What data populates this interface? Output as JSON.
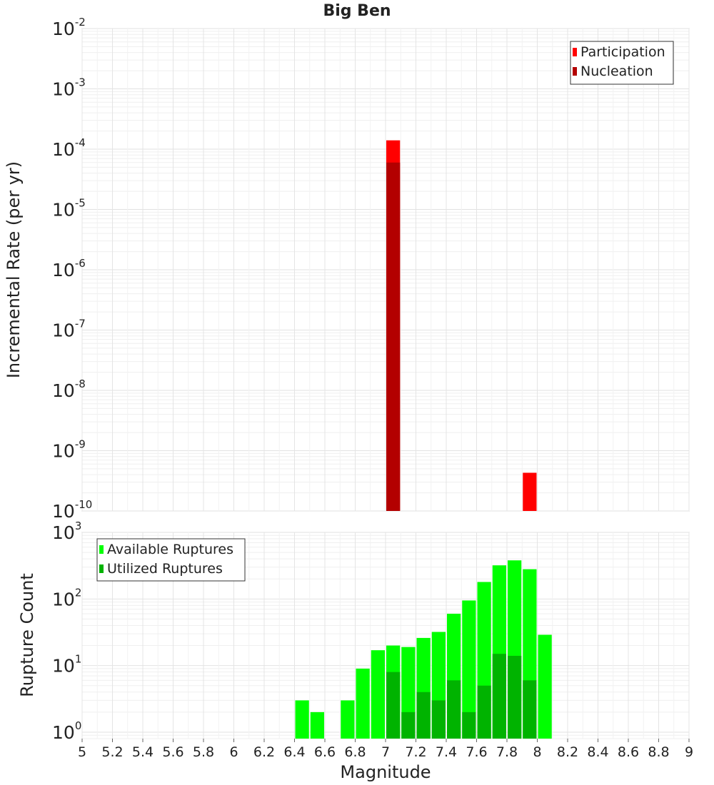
{
  "chart_data": [
    {
      "type": "bar",
      "title": "Big Ben",
      "ylabel": "Incremental Rate (per yr)",
      "yscale": "log",
      "ylim": [
        1e-10,
        0.01
      ],
      "xlim": [
        5,
        9
      ],
      "bin_width": 0.1,
      "y_tick_exponents": [
        "-10",
        "-9",
        "-8",
        "-7",
        "-6",
        "-5",
        "-4",
        "-3",
        "-2"
      ],
      "y_tick_base": "10",
      "legend_position": "top-right",
      "series": [
        {
          "name": "Participation",
          "color": "#ff0000",
          "points": [
            {
              "x": 7.05,
              "y": 0.00014
            },
            {
              "x": 7.95,
              "y": 4.3e-10
            }
          ]
        },
        {
          "name": "Nucleation",
          "color": "#b30000",
          "points": [
            {
              "x": 7.05,
              "y": 6e-05
            }
          ]
        }
      ]
    },
    {
      "type": "bar",
      "xlabel": "Magnitude",
      "ylabel": "Rupture Count",
      "yscale": "log",
      "ylim": [
        0.8,
        1000
      ],
      "xlim": [
        5,
        9
      ],
      "bin_width": 0.1,
      "y_tick_exponents": [
        "0",
        "1",
        "2",
        "3"
      ],
      "y_tick_base": "10",
      "x_ticks": [
        "5",
        "5.2",
        "5.4",
        "5.6",
        "5.8",
        "6",
        "6.2",
        "6.4",
        "6.6",
        "6.8",
        "7",
        "7.2",
        "7.4",
        "7.6",
        "7.8",
        "8",
        "8.2",
        "8.4",
        "8.6",
        "8.8",
        "9"
      ],
      "legend_position": "top-left",
      "series": [
        {
          "name": "Available Ruptures",
          "color": "#00ff00",
          "points": [
            {
              "x": 6.45,
              "y": 3
            },
            {
              "x": 6.55,
              "y": 2
            },
            {
              "x": 6.75,
              "y": 3
            },
            {
              "x": 6.85,
              "y": 9
            },
            {
              "x": 6.95,
              "y": 17
            },
            {
              "x": 7.05,
              "y": 20
            },
            {
              "x": 7.15,
              "y": 19
            },
            {
              "x": 7.25,
              "y": 26
            },
            {
              "x": 7.35,
              "y": 32
            },
            {
              "x": 7.45,
              "y": 60
            },
            {
              "x": 7.55,
              "y": 95
            },
            {
              "x": 7.65,
              "y": 180
            },
            {
              "x": 7.75,
              "y": 320
            },
            {
              "x": 7.85,
              "y": 380
            },
            {
              "x": 7.95,
              "y": 280
            },
            {
              "x": 8.05,
              "y": 29
            }
          ]
        },
        {
          "name": "Utilized Ruptures",
          "color": "#00b300",
          "points": [
            {
              "x": 7.05,
              "y": 8
            },
            {
              "x": 7.15,
              "y": 2
            },
            {
              "x": 7.25,
              "y": 4
            },
            {
              "x": 7.35,
              "y": 3
            },
            {
              "x": 7.45,
              "y": 6
            },
            {
              "x": 7.55,
              "y": 2
            },
            {
              "x": 7.65,
              "y": 5
            },
            {
              "x": 7.75,
              "y": 15
            },
            {
              "x": 7.85,
              "y": 14
            },
            {
              "x": 7.95,
              "y": 6
            }
          ]
        }
      ]
    }
  ]
}
